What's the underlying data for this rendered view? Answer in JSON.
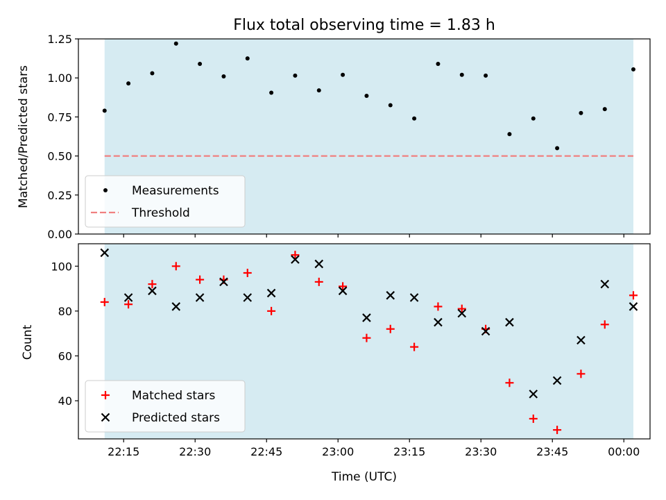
{
  "chart_data": {
    "type": "scatter",
    "title": "Flux total observing time = 1.83 h",
    "xlabel": "Time (UTC)",
    "x_tick_labels": [
      "22:15",
      "22:30",
      "22:45",
      "23:00",
      "23:15",
      "23:30",
      "23:45",
      "00:00"
    ],
    "x_tick_minutes": [
      -105,
      -90,
      -75,
      -60,
      -45,
      -30,
      -15,
      0
    ],
    "x_range_minutes": [
      -114.5,
      5.5
    ],
    "shade_range_minutes": [
      -109,
      2
    ],
    "x_minutes": [
      -109,
      -104,
      -99,
      -94,
      -89,
      -84,
      -79,
      -74,
      -69,
      -64,
      -59,
      -54,
      -49,
      -44,
      -39,
      -34,
      -29,
      -24,
      -19,
      -14,
      -9,
      -4,
      2
    ],
    "panels": [
      {
        "ylabel": "Matched/Predicted stars",
        "ylim": [
          0,
          1.25
        ],
        "yticks": [
          "0.00",
          "0.25",
          "0.50",
          "0.75",
          "1.00",
          "1.25"
        ],
        "legend_position": "lower-left",
        "series": [
          {
            "name": "Measurements",
            "marker": "dot",
            "color": "#000000",
            "values": [
              0.79,
              0.965,
              1.03,
              1.22,
              1.09,
              1.01,
              1.125,
              0.905,
              1.015,
              0.92,
              1.02,
              0.885,
              0.825,
              0.74,
              1.09,
              1.02,
              1.015,
              0.64,
              0.74,
              0.55,
              0.775,
              0.8,
              1.055
            ]
          }
        ],
        "threshold": {
          "name": "Threshold",
          "value": 0.5,
          "color": "#f08080"
        }
      },
      {
        "ylabel": "Count",
        "ylim": [
          23,
          110
        ],
        "yticks": [
          "40",
          "60",
          "80",
          "100"
        ],
        "legend_position": "lower-left",
        "series": [
          {
            "name": "Matched stars",
            "marker": "plus",
            "color": "#ff0000",
            "values": [
              84,
              83,
              92,
              100,
              94,
              94,
              97,
              80,
              105,
              93,
              91,
              68,
              72,
              64,
              82,
              81,
              72,
              48,
              32,
              27,
              52,
              74,
              87
            ]
          },
          {
            "name": "Predicted stars",
            "marker": "x",
            "color": "#000000",
            "values": [
              106,
              86,
              89,
              82,
              86,
              93,
              86,
              88,
              103,
              101,
              89,
              77,
              87,
              86,
              75,
              79,
              71,
              75,
              43,
              49,
              67,
              92,
              82
            ]
          }
        ]
      }
    ],
    "shade_color": "#add8e6"
  }
}
